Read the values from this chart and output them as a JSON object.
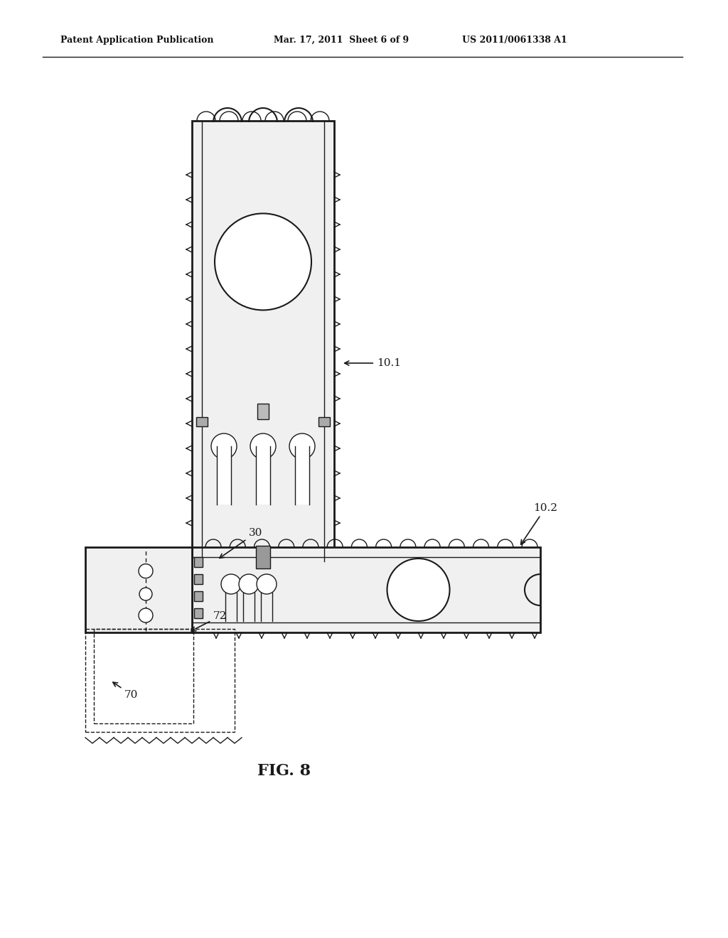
{
  "background_color": "#ffffff",
  "header_left": "Patent Application Publication",
  "header_center": "Mar. 17, 2011  Sheet 6 of 9",
  "header_right": "US 2011/0061338 A1",
  "fig_label": "FIG. 8",
  "label_101": "10.1",
  "label_102": "10.2",
  "label_30": "30",
  "label_70": "70",
  "label_72": "72"
}
